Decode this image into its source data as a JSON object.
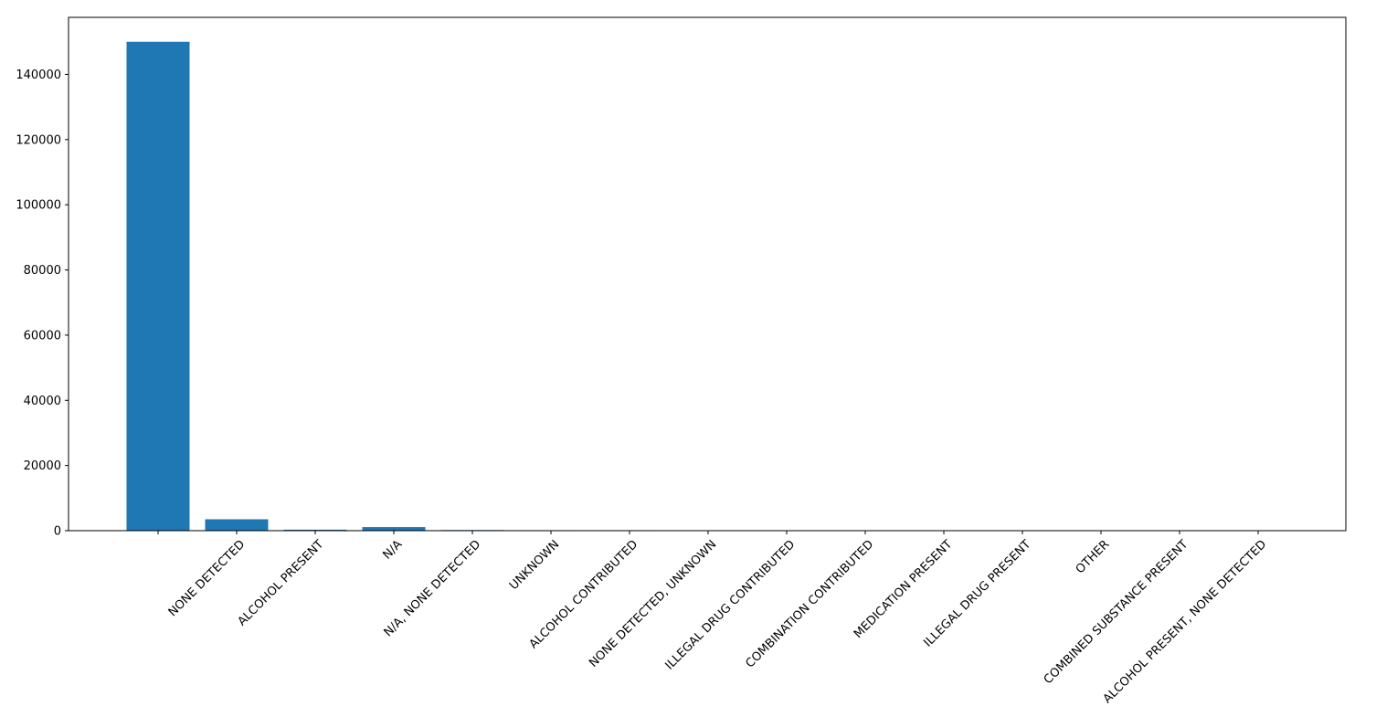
{
  "chart_data": {
    "type": "bar",
    "categories": [
      "",
      "NONE DETECTED",
      "ALCOHOL PRESENT",
      "N/A",
      "N/A, NONE DETECTED",
      "UNKNOWN",
      "ALCOHOL CONTRIBUTED",
      "NONE DETECTED, UNKNOWN",
      "ILLEGAL DRUG CONTRIBUTED",
      "COMBINATION CONTRIBUTED",
      "MEDICATION PRESENT",
      "ILLEGAL DRUG PRESENT",
      "OTHER",
      "COMBINED SUBSTANCE PRESENT",
      "ALCOHOL PRESENT, NONE DETECTED"
    ],
    "values": [
      150000,
      3500,
      300,
      1100,
      200,
      150,
      150,
      20,
      10,
      10,
      10,
      10,
      5,
      5,
      5
    ],
    "title": "",
    "xlabel": "",
    "ylabel": "",
    "ylim": [
      0,
      157500
    ],
    "yticks": [
      0,
      20000,
      40000,
      60000,
      80000,
      100000,
      120000,
      140000
    ],
    "grid": false,
    "bar_color": "#1f77b4"
  }
}
